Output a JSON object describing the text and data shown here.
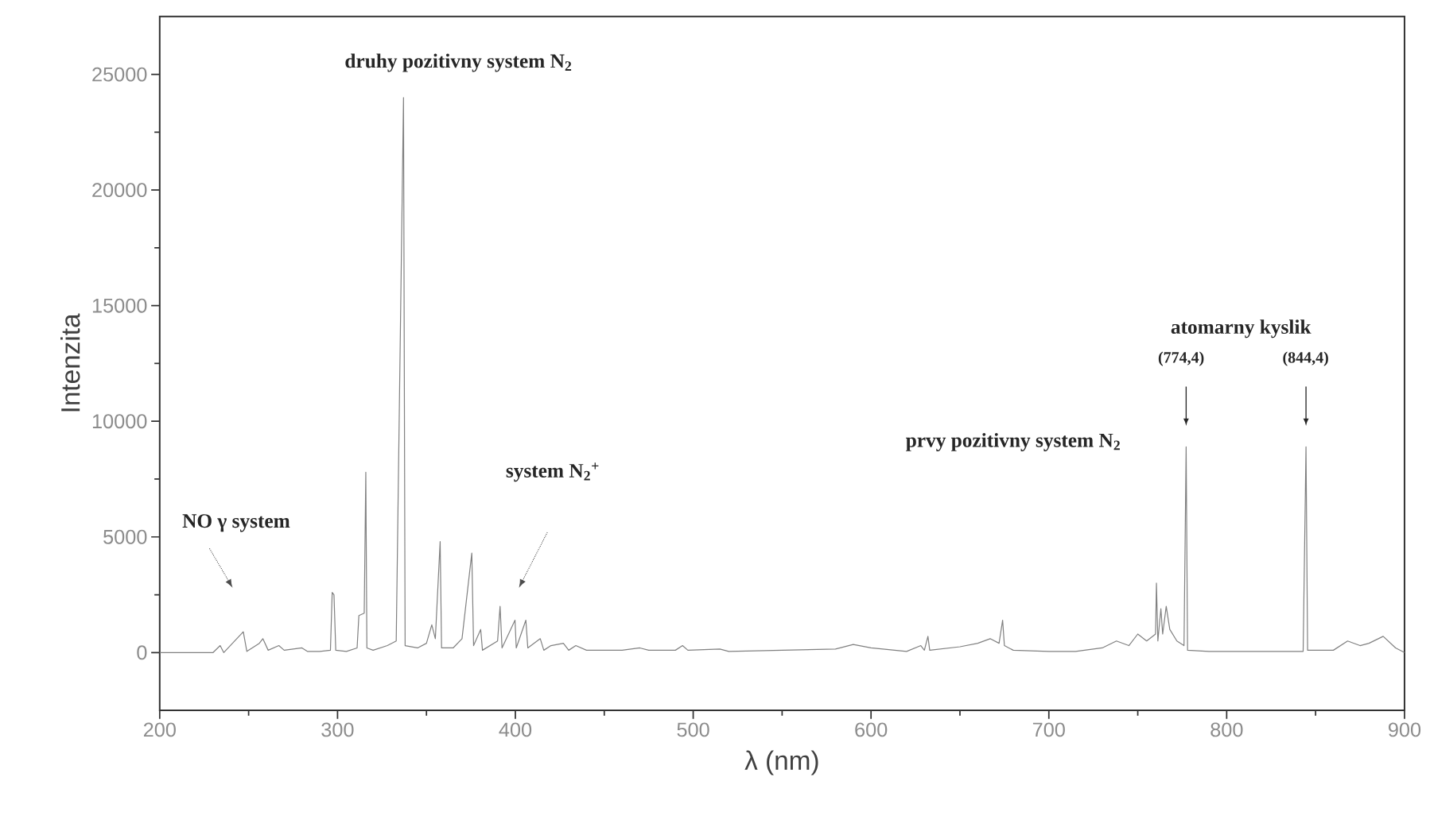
{
  "chart_data": {
    "type": "line",
    "xlabel": "λ (nm)",
    "ylabel": "Intenzita",
    "xlim": [
      200,
      900
    ],
    "ylim": [
      -2500,
      27500
    ],
    "xticks": [
      200,
      300,
      400,
      500,
      600,
      700,
      800,
      900
    ],
    "yticks": [
      0,
      5000,
      10000,
      15000,
      20000,
      25000
    ],
    "grid": false,
    "marker": "none",
    "line_style": "solid",
    "annotations": [
      "druhy pozitivny system N$_{2}$",
      "NO γ system",
      "system N$_{2}$$^{+}$",
      "prvy pozitivny system N$_{2}$",
      "atomarny  kyslik",
      "(774,4)",
      "(844,4)"
    ],
    "series": [
      {
        "color": "#808080",
        "x": [
          200,
          230,
          234,
          236,
          247,
          249,
          256,
          258,
          261,
          267,
          270,
          280,
          283,
          290,
          296,
          297,
          298,
          299,
          305,
          311,
          312,
          315,
          315.9,
          316.5,
          320,
          328,
          333,
          337.1,
          338,
          345,
          350,
          353,
          355,
          357.7,
          358.5,
          365,
          370,
          375.5,
          376.5,
          380.5,
          381.5,
          390,
          391.4,
          392.5,
          399.8,
          400.5,
          405.9,
          407,
          414,
          416,
          420,
          427,
          430,
          434,
          440,
          460,
          470,
          475,
          490,
          494,
          497,
          515,
          520,
          550,
          580,
          590,
          600,
          620,
          628,
          630,
          632,
          633,
          650,
          660,
          667,
          672,
          674,
          675,
          680,
          700,
          715,
          730,
          738,
          745,
          750,
          755,
          760,
          760.5,
          761.3,
          763,
          764,
          766,
          768,
          772,
          776,
          777.2,
          778,
          790,
          810,
          830,
          843,
          844.6,
          845.5,
          860,
          868,
          875,
          880,
          888,
          895,
          900
        ],
        "values": [
          0,
          0,
          300,
          0,
          900,
          50,
          400,
          600,
          100,
          300,
          100,
          200,
          50,
          50,
          100,
          2600,
          2500,
          100,
          50,
          200,
          1600,
          1700,
          7800,
          200,
          100,
          300,
          500,
          24000,
          300,
          200,
          400,
          1200,
          600,
          4800,
          200,
          200,
          600,
          4300,
          300,
          1000,
          100,
          500,
          2000,
          200,
          1400,
          200,
          1400,
          200,
          600,
          100,
          300,
          400,
          100,
          300,
          100,
          100,
          200,
          100,
          100,
          300,
          100,
          150,
          50,
          100,
          150,
          350,
          200,
          50,
          300,
          100,
          700,
          100,
          250,
          400,
          600,
          400,
          1400,
          300,
          100,
          50,
          50,
          200,
          500,
          300,
          800,
          500,
          800,
          3000,
          500,
          1900,
          800,
          2000,
          1000,
          500,
          300,
          8900,
          100,
          50,
          50,
          50,
          50,
          8900,
          100,
          100,
          500,
          300,
          400,
          700,
          200,
          0
        ]
      }
    ]
  }
}
